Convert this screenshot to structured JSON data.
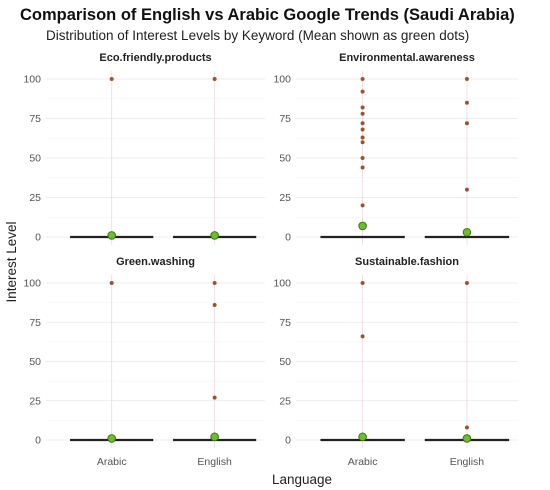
{
  "title": "Comparison of English vs Arabic Google Trends (Saudi Arabia)",
  "subtitle": "Distribution of Interest Levels by Keyword (Mean shown as green dots)",
  "colors": {
    "outlier": "#a0522d",
    "mean_fill": "#6abf2a",
    "mean_stroke": "#3d7a12",
    "median_line": "#222222"
  },
  "chart_data": {
    "type": "boxplot",
    "xlabel": "Language",
    "ylabel": "Interest Level",
    "categories": [
      "Arabic",
      "English"
    ],
    "yticks": [
      0,
      25,
      50,
      75,
      100
    ],
    "ylim": [
      0,
      100
    ],
    "grid": true,
    "facets": [
      {
        "name": "Eco.friendly.products",
        "groups": [
          {
            "category": "Arabic",
            "median": 0,
            "q1": 0,
            "q3": 0,
            "mean": 1,
            "outliers": [
              100
            ]
          },
          {
            "category": "English",
            "median": 0,
            "q1": 0,
            "q3": 0,
            "mean": 1,
            "outliers": [
              100
            ]
          }
        ]
      },
      {
        "name": "Environmental.awareness",
        "groups": [
          {
            "category": "Arabic",
            "median": 0,
            "q1": 0,
            "q3": 0,
            "mean": 7,
            "outliers": [
              100,
              92,
              82,
              78,
              72,
              68,
              63,
              60,
              50,
              44,
              20
            ]
          },
          {
            "category": "English",
            "median": 0,
            "q1": 0,
            "q3": 0,
            "mean": 3,
            "outliers": [
              100,
              85,
              72,
              30
            ]
          }
        ]
      },
      {
        "name": "Green.washing",
        "groups": [
          {
            "category": "Arabic",
            "median": 0,
            "q1": 0,
            "q3": 0,
            "mean": 1,
            "outliers": [
              100
            ]
          },
          {
            "category": "English",
            "median": 0,
            "q1": 0,
            "q3": 0,
            "mean": 2,
            "outliers": [
              100,
              86,
              27
            ]
          }
        ]
      },
      {
        "name": "Sustainable.fashion",
        "groups": [
          {
            "category": "Arabic",
            "median": 0,
            "q1": 0,
            "q3": 0,
            "mean": 2,
            "outliers": [
              100,
              66
            ]
          },
          {
            "category": "English",
            "median": 0,
            "q1": 0,
            "q3": 0,
            "mean": 1,
            "outliers": [
              100,
              8
            ]
          }
        ]
      }
    ]
  }
}
